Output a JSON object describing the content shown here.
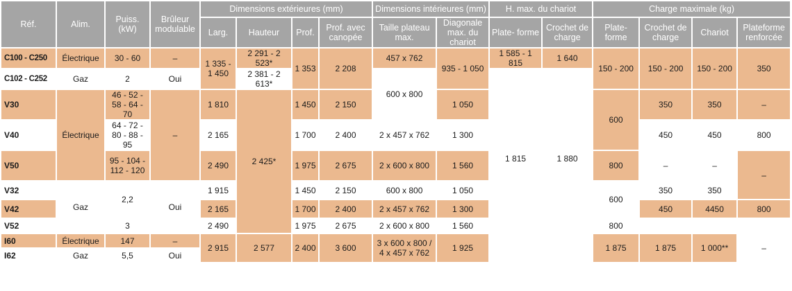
{
  "headers": {
    "ref": "Réf.",
    "alim": "Alim.",
    "puiss": "Puiss. (kW)",
    "bruleur": "Brûleur modulable",
    "dim_ext": "Dimensions extérieures (mm)",
    "dim_int": "Dimensions intérieures (mm)",
    "charge_max": "Charge maximale (kg)",
    "larg": "Larg.",
    "hauteur": "Hauteur",
    "prof": "Prof.",
    "prof_canopee": "Prof. avec canopée",
    "taille_plateau": "Taille plateau max.",
    "diagonale": "Diagonale max. du chariot",
    "h_max_chariot": "H. max. du chariot",
    "plateforme": "Plate- forme",
    "crochet_charge": "Crochet de charge",
    "chariot": "Chariot",
    "plateforme_renforcee": "Plateforme renforcée"
  },
  "rows": {
    "c100": {
      "ref": "C100 - C250",
      "alim": "Électrique",
      "puiss": "30 - 60",
      "bruleur": "–",
      "larg": "1 335 - 1 450",
      "hauteur": "2 291 - 2 523*",
      "prof": "1 353",
      "prof_canopee": "2 208",
      "taille": "457 x 762",
      "diagonale": "935 - 1 050",
      "h_plateforme": "1 585 - 1 815",
      "h_crochet": "1 640",
      "c_plateforme": "150 - 200",
      "c_crochet": "150 - 200",
      "c_chariot": "150 - 200",
      "c_renforcee": "350"
    },
    "c102": {
      "ref": "C102 - C252",
      "alim": "Gaz",
      "puiss": "2",
      "bruleur": "Oui",
      "hauteur": "2 381 - 2 613*",
      "taille": "600 x 800"
    },
    "v30": {
      "ref": "V30",
      "alim_group": "Électrique",
      "puiss": "46 - 52 - 58 - 64 - 70",
      "bruleur_group": "–",
      "larg": "1 810",
      "hauteur_group": "2 425*",
      "prof": "1 450",
      "prof_canopee": "2 150",
      "diagonale": "1 050",
      "c_plateforme_group": "600",
      "c_crochet": "350",
      "c_chariot": "350",
      "c_renforcee": "–"
    },
    "v40": {
      "ref": "V40",
      "puiss": "64 - 72 - 80 - 88 - 95",
      "larg": "2 165",
      "prof": "1 700",
      "prof_canopee": "2 400",
      "taille": "2 x 457 x 762",
      "diagonale": "1 300",
      "h_plateforme_group": "1 815",
      "h_crochet_group": "1 880",
      "c_crochet": "450",
      "c_chariot": "450",
      "c_renforcee": "800"
    },
    "v50": {
      "ref": "V50",
      "puiss": "95 - 104 - 112 - 120",
      "larg": "2 490",
      "prof": "1 975",
      "prof_canopee": "2 675",
      "taille": "2 x 600 x 800",
      "diagonale": "1 560",
      "c_plateforme": "800",
      "c_crochet": "–",
      "c_chariot": "–",
      "c_renforcee_group": "–"
    },
    "v32": {
      "ref": "V32",
      "alim_group": "Gaz",
      "puiss_group": "2,2",
      "bruleur_group": "Oui",
      "larg": "1 915",
      "prof": "1 450",
      "prof_canopee": "2 150",
      "taille": "600 x 800",
      "diagonale": "1 050",
      "c_plateforme_group": "600",
      "c_crochet": "350",
      "c_chariot": "350"
    },
    "v42": {
      "ref": "V42",
      "larg": "2 165",
      "prof": "1 700",
      "prof_canopee": "2 400",
      "taille": "2 x 457 x 762",
      "diagonale": "1 300",
      "c_crochet": "450",
      "c_chariot": "4450",
      "c_renforcee": "800"
    },
    "v52": {
      "ref": "V52",
      "puiss": "3",
      "larg": "2 490",
      "prof": "1 975",
      "prof_canopee": "2 675",
      "taille": "2 x 600 x 800",
      "diagonale": "1 560",
      "c_plateforme": "800"
    },
    "i60": {
      "ref": "I60",
      "alim": "Électrique",
      "puiss": "147",
      "bruleur": "–",
      "larg_group": "2 915",
      "hauteur_group": "2 577",
      "prof_group": "2 400",
      "prof_canopee_group": "3 600",
      "taille_group": "3 x 600 x 800 / 4 x 457 x 762",
      "diagonale_group": "1 925",
      "h_plateforme_group": "1 875",
      "h_crochet_group": "1 875",
      "c_plateforme_group": "1 000**",
      "c_crochet_group": "–",
      "c_chariot_group": "–",
      "c_renforcee_group": "–"
    },
    "i62": {
      "ref": "I62",
      "alim": "Gaz",
      "puiss": "5,5",
      "bruleur": "Oui"
    }
  }
}
